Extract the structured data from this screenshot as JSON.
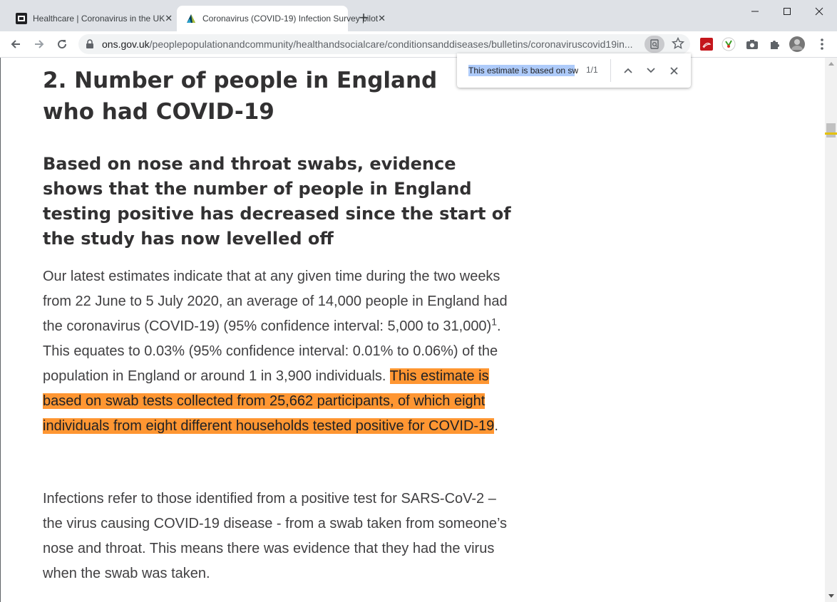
{
  "tabs": [
    {
      "title": "Healthcare | Coronavirus in the UK",
      "icon": "nhs-icon"
    },
    {
      "title": "Coronavirus (COVID-19) Infection Survey pilot",
      "icon": "ons-icon"
    }
  ],
  "address_bar": {
    "domain": "ons.gov.uk",
    "path": "/peoplepopulationandcommunity/healthandsocialcare/conditionsanddiseases/bulletins/coronaviruscovid19in..."
  },
  "find_bar": {
    "query": "This estimate is based on sw",
    "count": "1/1"
  },
  "article": {
    "heading": "2.  Number of people in England who had COVID-19",
    "subheading": "Based on nose and throat swabs, evidence shows that the number of people in England testing positive has decreased since the start of the study has now levelled off",
    "para1_before_sup": "Our latest estimates indicate that at any given time during the two weeks from 22 June to 5 July 2020, an average of 14,000 people in England had the coronavirus (COVID-19) (95% confidence interval: 5,000 to 31,000)",
    "para1_sup": "1",
    "para1_after_sup": ". This equates to 0.03% (95% confidence interval: 0.01% to 0.06%) of the population in England or around 1 in 3,900 individuals. ",
    "para1_highlight": "This estimate is based on swab tests collected from 25,662 participants, of which eight individuals from eight different households tested positive for COVID-19",
    "para1_end": ".",
    "para2": "Infections refer to those identified from a positive test for SARS-CoV-2 – the virus causing COVID-19 disease - from a swab taken from someone’s nose and throat. This means there was evidence that they had the virus when the swab was taken."
  },
  "colors": {
    "highlight": "#ff9632",
    "find_selection": "#aecbfa",
    "text": "#323132"
  }
}
